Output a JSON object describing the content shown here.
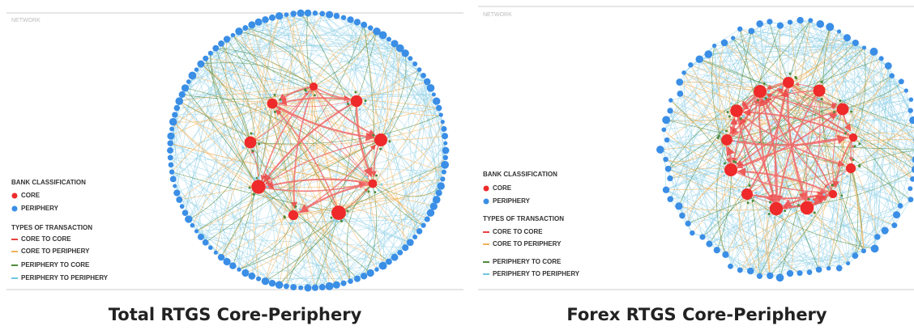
{
  "panels": [
    {
      "header": "NETWORK",
      "legend": {
        "classification_title": "BANK CLASSIFICATION",
        "classes": [
          "CORE",
          "PERIPHERY"
        ],
        "transaction_title": "TYPES OF TRANSACTION",
        "transactions": [
          "CORE TO CORE",
          "CORE TO PERIPHERY",
          "PERIPHERY TO CORE",
          "PERIPHERY TO PERIPHERY"
        ]
      },
      "caption": "Total RTGS Core-Periphery"
    },
    {
      "header": "NETWORK",
      "legend": {
        "classification_title": "BANK CLASSIFICATION",
        "classes": [
          "CORE",
          "PERIPHERY"
        ],
        "transaction_title": "TYPES OF TRANSACTION",
        "transactions": [
          "CORE TO CORE",
          "CORE TO PERIPHERY",
          "PERIPHERY TO CORE",
          "PERIPHERY TO PERIPHERY"
        ]
      },
      "caption": "Forex RTGS Core-Periphery"
    }
  ]
}
